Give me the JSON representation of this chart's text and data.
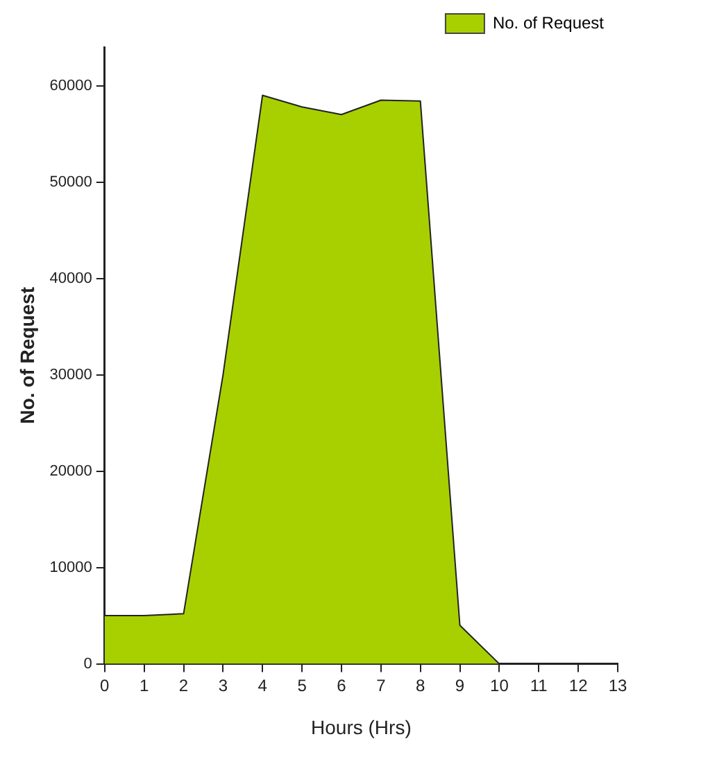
{
  "chart_data": {
    "type": "area",
    "xlabel": "Hours (Hrs)",
    "ylabel": "No. of Request",
    "x": [
      0,
      1,
      2,
      3,
      4,
      5,
      6,
      7,
      8,
      9,
      10
    ],
    "series": [
      {
        "name": "No. of Request",
        "color": "#a8d000",
        "values": [
          5000,
          5000,
          5200,
          30000,
          59000,
          57800,
          57000,
          58500,
          58400,
          4000,
          0
        ]
      }
    ],
    "xlim": [
      0,
      13
    ],
    "xticks": [
      0,
      1,
      2,
      3,
      4,
      5,
      6,
      7,
      8,
      9,
      10,
      11,
      12,
      13
    ],
    "ylim": [
      0,
      64000
    ],
    "yticks": [
      0,
      10000,
      20000,
      30000,
      40000,
      50000,
      60000
    ],
    "grid": false,
    "legend": "top right",
    "marker": "none"
  }
}
